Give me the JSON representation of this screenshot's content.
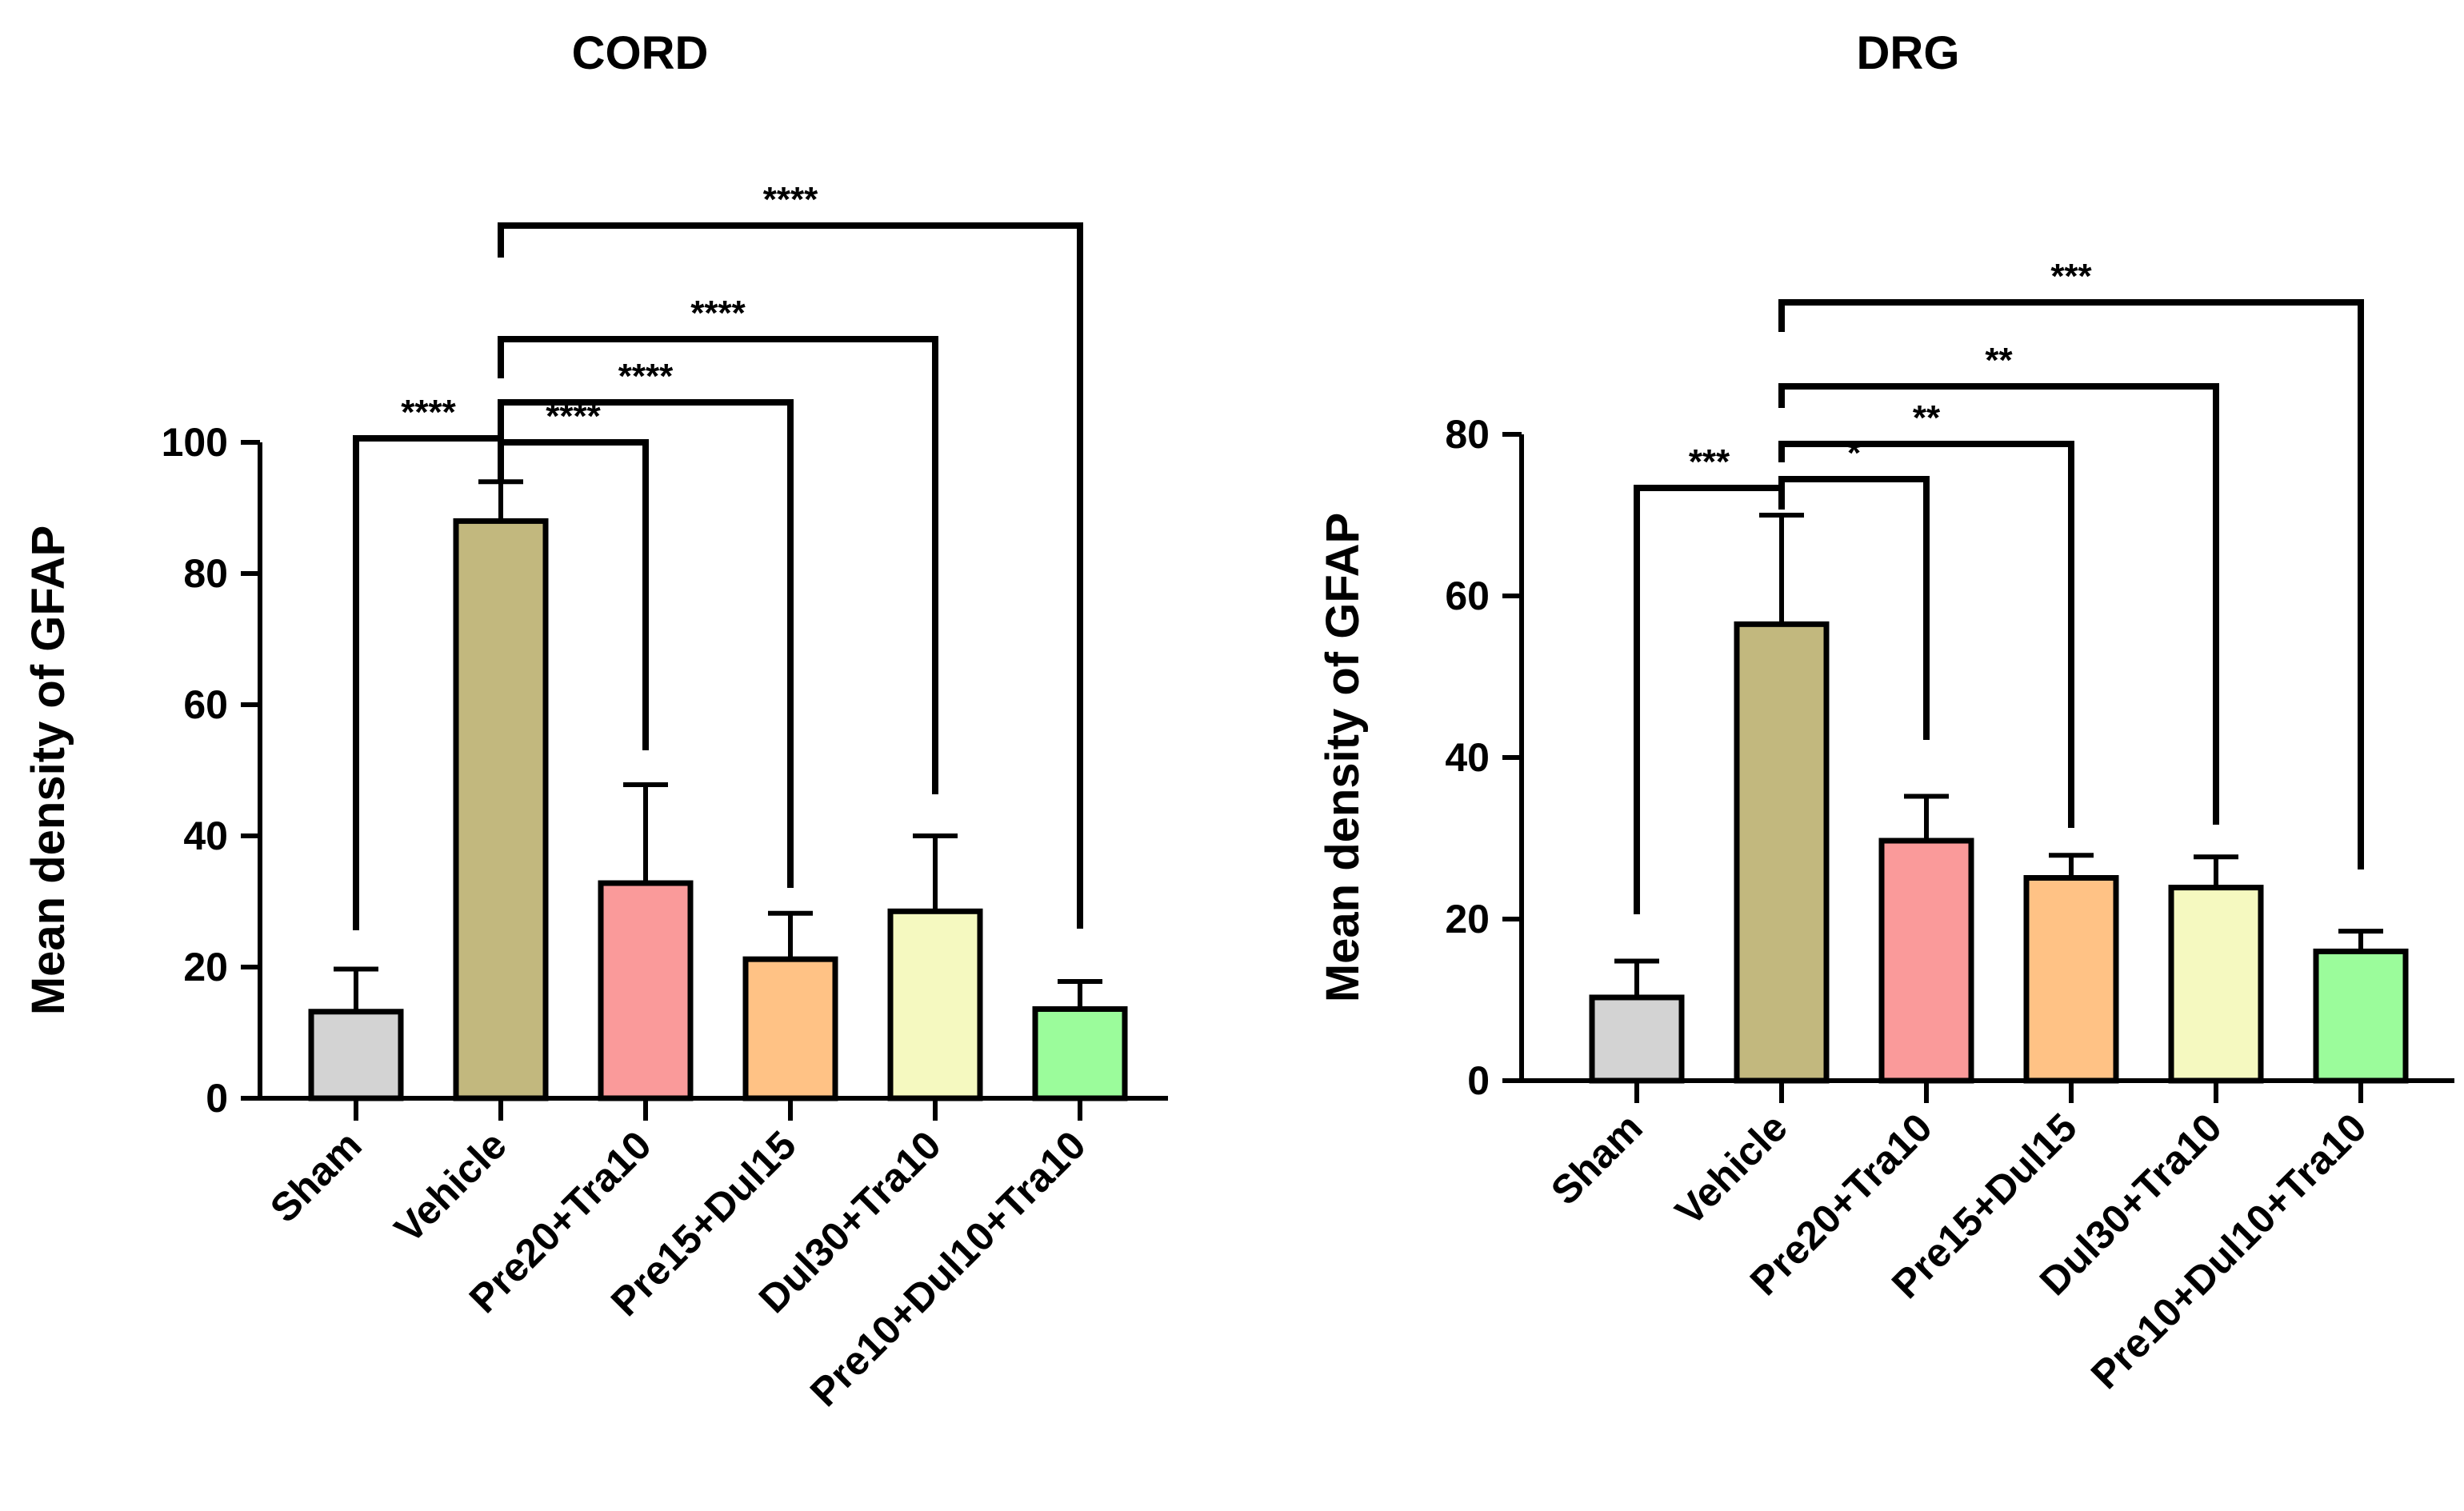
{
  "chart_data": [
    {
      "type": "bar",
      "title": "CORD",
      "ylabel": "Mean density of GFAP",
      "xlabel": "",
      "ylim": [
        0,
        100
      ],
      "yticks": [
        0,
        20,
        40,
        60,
        80,
        100
      ],
      "categories": [
        "Sham",
        "Vehicle",
        "Pre20+Tra10",
        "Pre15+Dul15",
        "Dul30+Tra10",
        "Pre10+Dul10+Tra10"
      ],
      "values": [
        13.2,
        88,
        32.8,
        21.2,
        28.5,
        13.6
      ],
      "error": [
        6.5,
        6.0,
        15.0,
        7.0,
        11.5,
        4.2
      ],
      "colors": [
        "#d3d3d3",
        "#c2b87e",
        "#fa9a9a",
        "#ffc285",
        "#f5f9c0",
        "#9bfc9b"
      ],
      "comparisons": [
        {
          "from": "Sham",
          "to": "Vehicle",
          "label": "****"
        },
        {
          "from": "Vehicle",
          "to": "Pre20+Tra10",
          "label": "****"
        },
        {
          "from": "Vehicle",
          "to": "Pre15+Dul15",
          "label": "****"
        },
        {
          "from": "Vehicle",
          "to": "Dul30+Tra10",
          "label": "****"
        },
        {
          "from": "Vehicle",
          "to": "Pre10+Dul10+Tra10",
          "label": "****"
        }
      ]
    },
    {
      "type": "bar",
      "title": "DRG",
      "ylabel": "Mean density of GFAP",
      "xlabel": "",
      "ylim": [
        0,
        80
      ],
      "yticks": [
        0,
        20,
        40,
        60,
        80
      ],
      "categories": [
        "Sham",
        "Vehicle",
        "Pre20+Tra10",
        "Pre15+Dul15",
        "Dul30+Tra10",
        "Pre10+Dul10+Tra10"
      ],
      "values": [
        10.3,
        56.5,
        29.7,
        25.1,
        23.9,
        16.0
      ],
      "error": [
        4.5,
        13.5,
        5.5,
        2.8,
        3.8,
        2.5
      ],
      "colors": [
        "#d3d3d3",
        "#c2b87e",
        "#fa9a9a",
        "#ffc285",
        "#f5f9c0",
        "#9bfc9b"
      ],
      "comparisons": [
        {
          "from": "Sham",
          "to": "Vehicle",
          "label": "***"
        },
        {
          "from": "Vehicle",
          "to": "Pre20+Tra10",
          "label": "*"
        },
        {
          "from": "Vehicle",
          "to": "Pre15+Dul15",
          "label": "**"
        },
        {
          "from": "Vehicle",
          "to": "Dul30+Tra10",
          "label": "**"
        },
        {
          "from": "Vehicle",
          "to": "Pre10+Dul10+Tra10",
          "label": "***"
        }
      ]
    }
  ]
}
